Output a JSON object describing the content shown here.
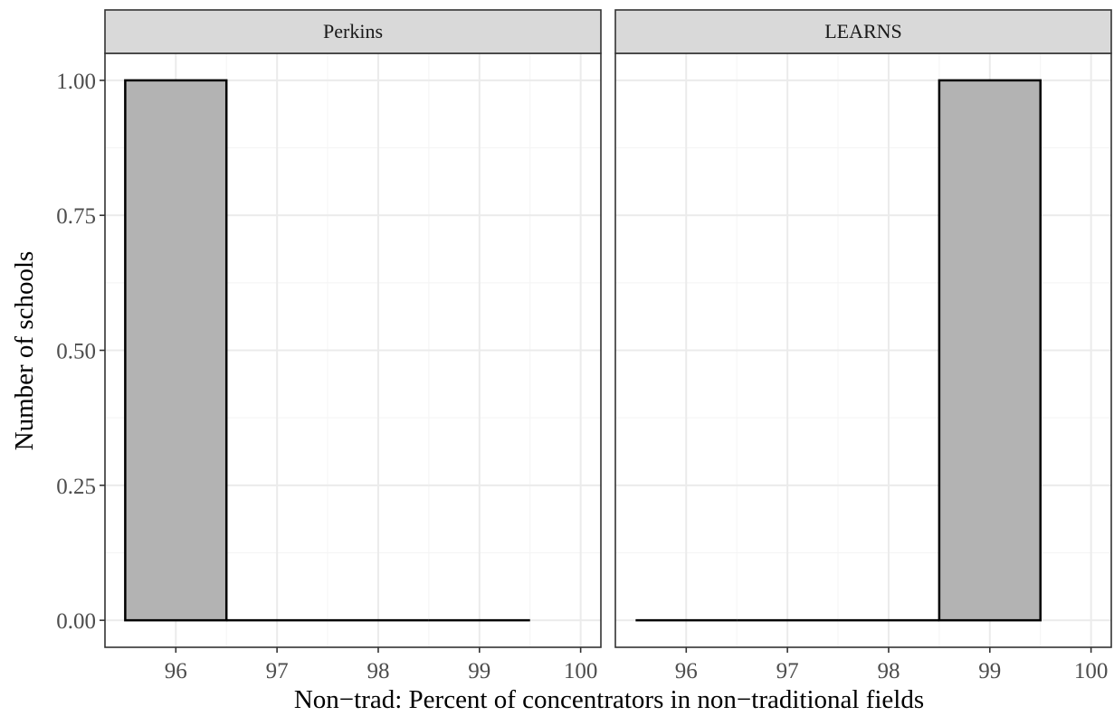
{
  "chart_data": {
    "type": "bar",
    "xlabel": "Non−trad: Percent of concentrators in non−traditional fields",
    "ylabel": "Number of schools",
    "xlim": [
      95.3,
      100.2
    ],
    "ylim": [
      -0.05,
      1.05
    ],
    "x_ticks": [
      "96",
      "97",
      "98",
      "99",
      "100"
    ],
    "y_ticks": [
      "0.00",
      "0.25",
      "0.50",
      "0.75",
      "1.00"
    ],
    "bins": [
      95.5,
      96.5,
      97.5,
      98.5,
      99.5
    ],
    "grid": true,
    "panels": [
      {
        "strip_label": "Perkins",
        "bars": [
          {
            "x": 96,
            "value": 1
          },
          {
            "x": 97,
            "value": 0
          },
          {
            "x": 98,
            "value": 0
          },
          {
            "x": 99,
            "value": 0
          }
        ]
      },
      {
        "strip_label": "LEARNS",
        "bars": [
          {
            "x": 96,
            "value": 0
          },
          {
            "x": 97,
            "value": 0
          },
          {
            "x": 98,
            "value": 0
          },
          {
            "x": 99,
            "value": 1
          }
        ]
      }
    ]
  }
}
